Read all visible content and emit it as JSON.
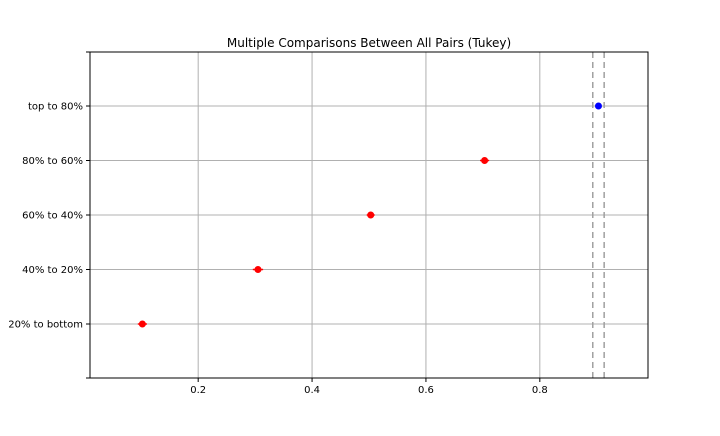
{
  "chart_data": {
    "type": "scatter",
    "title": "Multiple Comparisons Between All Pairs (Tukey)",
    "xlabel": "",
    "ylabel": "",
    "xlim": [
      0.01,
      0.99
    ],
    "xticks": [
      0.2,
      0.4,
      0.6,
      0.8
    ],
    "xtick_labels": [
      "0.2",
      "0.4",
      "0.6",
      "0.8"
    ],
    "categories": [
      "top to 80%",
      "80% to 60%",
      "60% to 40%",
      "40% to 20%",
      "20% to bottom"
    ],
    "grid": true,
    "points": [
      {
        "category": "top to 80%",
        "x": 0.903,
        "low": 0.898,
        "high": 0.908,
        "color": "#0000ff"
      },
      {
        "category": "80% to 60%",
        "x": 0.703,
        "low": 0.695,
        "high": 0.711,
        "color": "#ff0000"
      },
      {
        "category": "60% to 40%",
        "x": 0.503,
        "low": 0.496,
        "high": 0.51,
        "color": "#ff0000"
      },
      {
        "category": "40% to 20%",
        "x": 0.305,
        "low": 0.296,
        "high": 0.314,
        "color": "#ff0000"
      },
      {
        "category": "20% to bottom",
        "x": 0.102,
        "low": 0.094,
        "high": 0.11,
        "color": "#ff0000"
      }
    ],
    "reference_lines": [
      0.893,
      0.913
    ],
    "reference_line_color": "#a0a0a0",
    "grid_color": "#b0b0b0"
  }
}
